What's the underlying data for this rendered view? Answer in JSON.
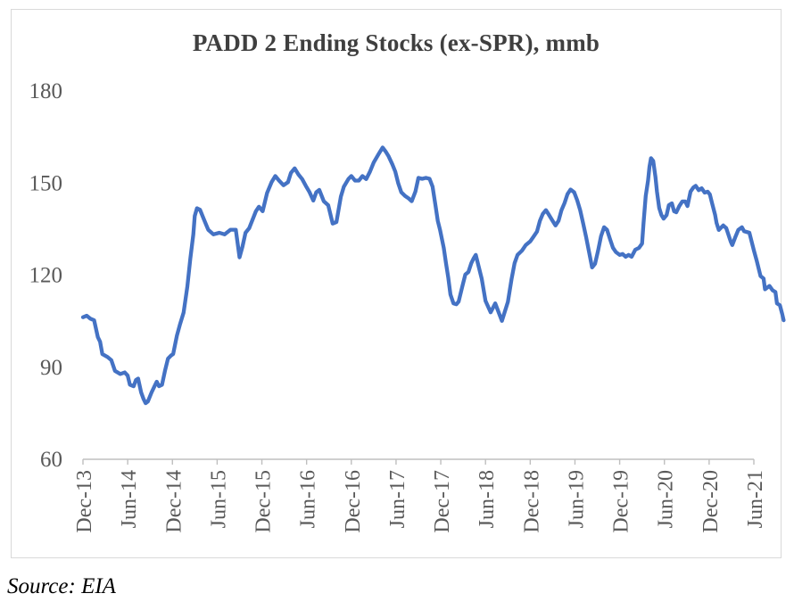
{
  "chart": {
    "title": "PADD 2 Ending Stocks (ex-SPR), mmb"
  },
  "source": "Source: EIA",
  "colors": {
    "line": "#4472C4",
    "title_text": "#3F3F3F",
    "axis_text": "#595959",
    "axis_line": "#BFBFBF",
    "frame_border": "#D9D9D9"
  },
  "chart_data": {
    "type": "line",
    "title": "PADD 2 Ending Stocks (ex-SPR), mmb",
    "xlabel": "",
    "ylabel": "",
    "ylim": [
      60,
      180
    ],
    "grid": false,
    "legend": "none",
    "y_axis": {
      "ticks": [
        60,
        90,
        120,
        150,
        180
      ]
    },
    "x_axis": {
      "unit": "months since Dec-2013",
      "tick_interval_months": 6,
      "tick_labels": [
        "Dec-13",
        "Jun-14",
        "Dec-14",
        "Jun-15",
        "Dec-15",
        "Jun-16",
        "Dec-16",
        "Jun-17",
        "Dec-17",
        "Jun-18",
        "Dec-18",
        "Jun-19",
        "Dec-19",
        "Jun-20",
        "Dec-20",
        "Jun-21"
      ]
    },
    "series": [
      {
        "name": "PADD 2 ending stocks (ex-SPR), mmb",
        "color": "#4472C4",
        "points": [
          [
            0,
            106
          ],
          [
            0.5,
            106.5
          ],
          [
            1,
            105.5
          ],
          [
            1.5,
            105
          ],
          [
            2,
            99.5
          ],
          [
            2.3,
            98
          ],
          [
            2.6,
            94
          ],
          [
            3.3,
            93
          ],
          [
            3.8,
            92
          ],
          [
            4.3,
            88.5
          ],
          [
            5,
            87.5
          ],
          [
            5.6,
            88
          ],
          [
            6,
            87
          ],
          [
            6.3,
            84
          ],
          [
            6.8,
            83.5
          ],
          [
            7.1,
            85.5
          ],
          [
            7.4,
            86
          ],
          [
            7.8,
            81.5
          ],
          [
            8.1,
            79.5
          ],
          [
            8.4,
            78
          ],
          [
            8.7,
            78.5
          ],
          [
            9.2,
            81.5
          ],
          [
            9.6,
            83.5
          ],
          [
            9.9,
            85
          ],
          [
            10.2,
            83.5
          ],
          [
            10.6,
            84
          ],
          [
            11,
            88.5
          ],
          [
            11.4,
            92.5
          ],
          [
            11.8,
            93.5
          ],
          [
            12.1,
            94
          ],
          [
            12.6,
            100
          ],
          [
            13,
            103.5
          ],
          [
            13.5,
            107.5
          ],
          [
            14,
            116
          ],
          [
            14.4,
            125
          ],
          [
            14.8,
            133
          ],
          [
            15,
            139
          ],
          [
            15.3,
            141.5
          ],
          [
            15.7,
            141
          ],
          [
            16.2,
            138
          ],
          [
            16.8,
            134.5
          ],
          [
            17.5,
            133
          ],
          [
            18.3,
            133.5
          ],
          [
            19,
            133
          ],
          [
            19.8,
            134.5
          ],
          [
            20.5,
            134.5
          ],
          [
            21,
            125.5
          ],
          [
            21.4,
            129
          ],
          [
            21.8,
            133.5
          ],
          [
            22.3,
            135
          ],
          [
            22.7,
            137.5
          ],
          [
            23.2,
            140.5
          ],
          [
            23.6,
            142
          ],
          [
            24.1,
            140.5
          ],
          [
            24.7,
            146.5
          ],
          [
            25.3,
            150
          ],
          [
            25.8,
            152
          ],
          [
            26.3,
            150.5
          ],
          [
            26.9,
            149
          ],
          [
            27.5,
            150
          ],
          [
            27.9,
            153
          ],
          [
            28.4,
            154.5
          ],
          [
            28.9,
            152.5
          ],
          [
            29.4,
            151
          ],
          [
            29.9,
            148.8
          ],
          [
            30.4,
            146.7
          ],
          [
            30.9,
            144
          ],
          [
            31.3,
            146.7
          ],
          [
            31.7,
            147.5
          ],
          [
            32.3,
            143.8
          ],
          [
            32.9,
            142.5
          ],
          [
            33.5,
            136.5
          ],
          [
            34,
            137
          ],
          [
            34.6,
            145.3
          ],
          [
            35,
            148.5
          ],
          [
            35.6,
            151
          ],
          [
            36,
            152
          ],
          [
            36.5,
            150.5
          ],
          [
            37,
            150.5
          ],
          [
            37.5,
            152
          ],
          [
            38,
            151
          ],
          [
            38.5,
            153.4
          ],
          [
            39,
            156.4
          ],
          [
            39.7,
            159.3
          ],
          [
            40.2,
            161.3
          ],
          [
            40.6,
            160
          ],
          [
            41,
            158.4
          ],
          [
            41.5,
            155.8
          ],
          [
            41.9,
            153.4
          ],
          [
            42.3,
            149.6
          ],
          [
            42.7,
            146.7
          ],
          [
            43.2,
            145.5
          ],
          [
            43.7,
            144.7
          ],
          [
            44.1,
            143.8
          ],
          [
            44.6,
            147
          ],
          [
            45,
            151.4
          ],
          [
            45.5,
            151.1
          ],
          [
            46,
            151.4
          ],
          [
            46.5,
            151.1
          ],
          [
            46.9,
            148.5
          ],
          [
            47.3,
            142.3
          ],
          [
            47.6,
            137.4
          ],
          [
            47.9,
            134.5
          ],
          [
            48.4,
            128.6
          ],
          [
            48.7,
            123.6
          ],
          [
            49,
            119
          ],
          [
            49.3,
            113.4
          ],
          [
            49.7,
            110.5
          ],
          [
            50.1,
            110.2
          ],
          [
            50.4,
            111.1
          ],
          [
            50.9,
            116.1
          ],
          [
            51.3,
            119.9
          ],
          [
            51.7,
            120.7
          ],
          [
            52.1,
            123.6
          ],
          [
            52.4,
            125.1
          ],
          [
            52.7,
            126.3
          ],
          [
            53.5,
            118.5
          ],
          [
            54,
            111.3
          ],
          [
            54.7,
            107.6
          ],
          [
            55.3,
            110.5
          ],
          [
            56.2,
            104.8
          ],
          [
            57,
            111
          ],
          [
            57.5,
            118.4
          ],
          [
            57.9,
            123.6
          ],
          [
            58.3,
            126.3
          ],
          [
            58.9,
            127.7
          ],
          [
            59.4,
            129.5
          ],
          [
            60,
            130.7
          ],
          [
            60.4,
            132.1
          ],
          [
            60.9,
            133.9
          ],
          [
            61.3,
            137.4
          ],
          [
            61.7,
            139.7
          ],
          [
            62.1,
            140.9
          ],
          [
            62.5,
            139.4
          ],
          [
            63,
            137.4
          ],
          [
            63.4,
            135.9
          ],
          [
            63.8,
            137.4
          ],
          [
            64.2,
            140.9
          ],
          [
            64.6,
            143.2
          ],
          [
            65,
            146.1
          ],
          [
            65.4,
            147.6
          ],
          [
            65.9,
            146.7
          ],
          [
            66.3,
            144.1
          ],
          [
            66.7,
            140.9
          ],
          [
            67.1,
            136.5
          ],
          [
            67.5,
            132.1
          ],
          [
            67.9,
            127.2
          ],
          [
            68.3,
            122.2
          ],
          [
            68.7,
            123.4
          ],
          [
            69.1,
            127.7
          ],
          [
            69.5,
            132.4
          ],
          [
            69.9,
            135.3
          ],
          [
            70.3,
            134.5
          ],
          [
            70.7,
            131.5
          ],
          [
            71.1,
            128.6
          ],
          [
            71.5,
            127.2
          ],
          [
            72,
            126.3
          ],
          [
            72.4,
            126.6
          ],
          [
            72.8,
            125.7
          ],
          [
            73.2,
            126.3
          ],
          [
            73.6,
            125.7
          ],
          [
            74.1,
            128
          ],
          [
            74.6,
            128.6
          ],
          [
            75,
            130
          ],
          [
            75.2,
            136.5
          ],
          [
            75.5,
            145.5
          ],
          [
            75.8,
            150.5
          ],
          [
            76,
            155
          ],
          [
            76.2,
            157.8
          ],
          [
            76.5,
            156.9
          ],
          [
            76.8,
            151.7
          ],
          [
            77,
            146.9
          ],
          [
            77.3,
            141.6
          ],
          [
            77.6,
            139.3
          ],
          [
            77.9,
            138.1
          ],
          [
            78.3,
            139.3
          ],
          [
            78.6,
            142.5
          ],
          [
            79,
            143.1
          ],
          [
            79.3,
            140.5
          ],
          [
            79.6,
            140.2
          ],
          [
            80,
            142.2
          ],
          [
            80.4,
            143.7
          ],
          [
            80.8,
            143.7
          ],
          [
            81.1,
            142.2
          ],
          [
            81.5,
            146.9
          ],
          [
            81.9,
            148.3
          ],
          [
            82.2,
            148.8
          ],
          [
            82.6,
            147.4
          ],
          [
            83,
            148
          ],
          [
            83.4,
            146.6
          ],
          [
            83.8,
            146.9
          ],
          [
            84.1,
            146
          ],
          [
            84.4,
            143.1
          ],
          [
            84.8,
            139.3
          ],
          [
            85,
            136.7
          ],
          [
            85.3,
            134.4
          ],
          [
            85.9,
            135.9
          ],
          [
            86.3,
            135
          ],
          [
            86.9,
            130.6
          ],
          [
            87.1,
            129.5
          ],
          [
            87.5,
            132
          ],
          [
            87.9,
            134.4
          ],
          [
            88.4,
            135.3
          ],
          [
            88.7,
            134
          ],
          [
            89,
            133.8
          ],
          [
            89.4,
            133.5
          ],
          [
            90,
            127.8
          ],
          [
            90.4,
            124.3
          ],
          [
            90.9,
            119.4
          ],
          [
            91.3,
            118.6
          ],
          [
            91.5,
            115.1
          ],
          [
            92.1,
            116.2
          ],
          [
            92.5,
            114.8
          ],
          [
            92.9,
            114.2
          ],
          [
            93.1,
            110.5
          ],
          [
            93.5,
            109.9
          ],
          [
            93.8,
            107
          ],
          [
            94,
            105
          ]
        ]
      }
    ]
  }
}
